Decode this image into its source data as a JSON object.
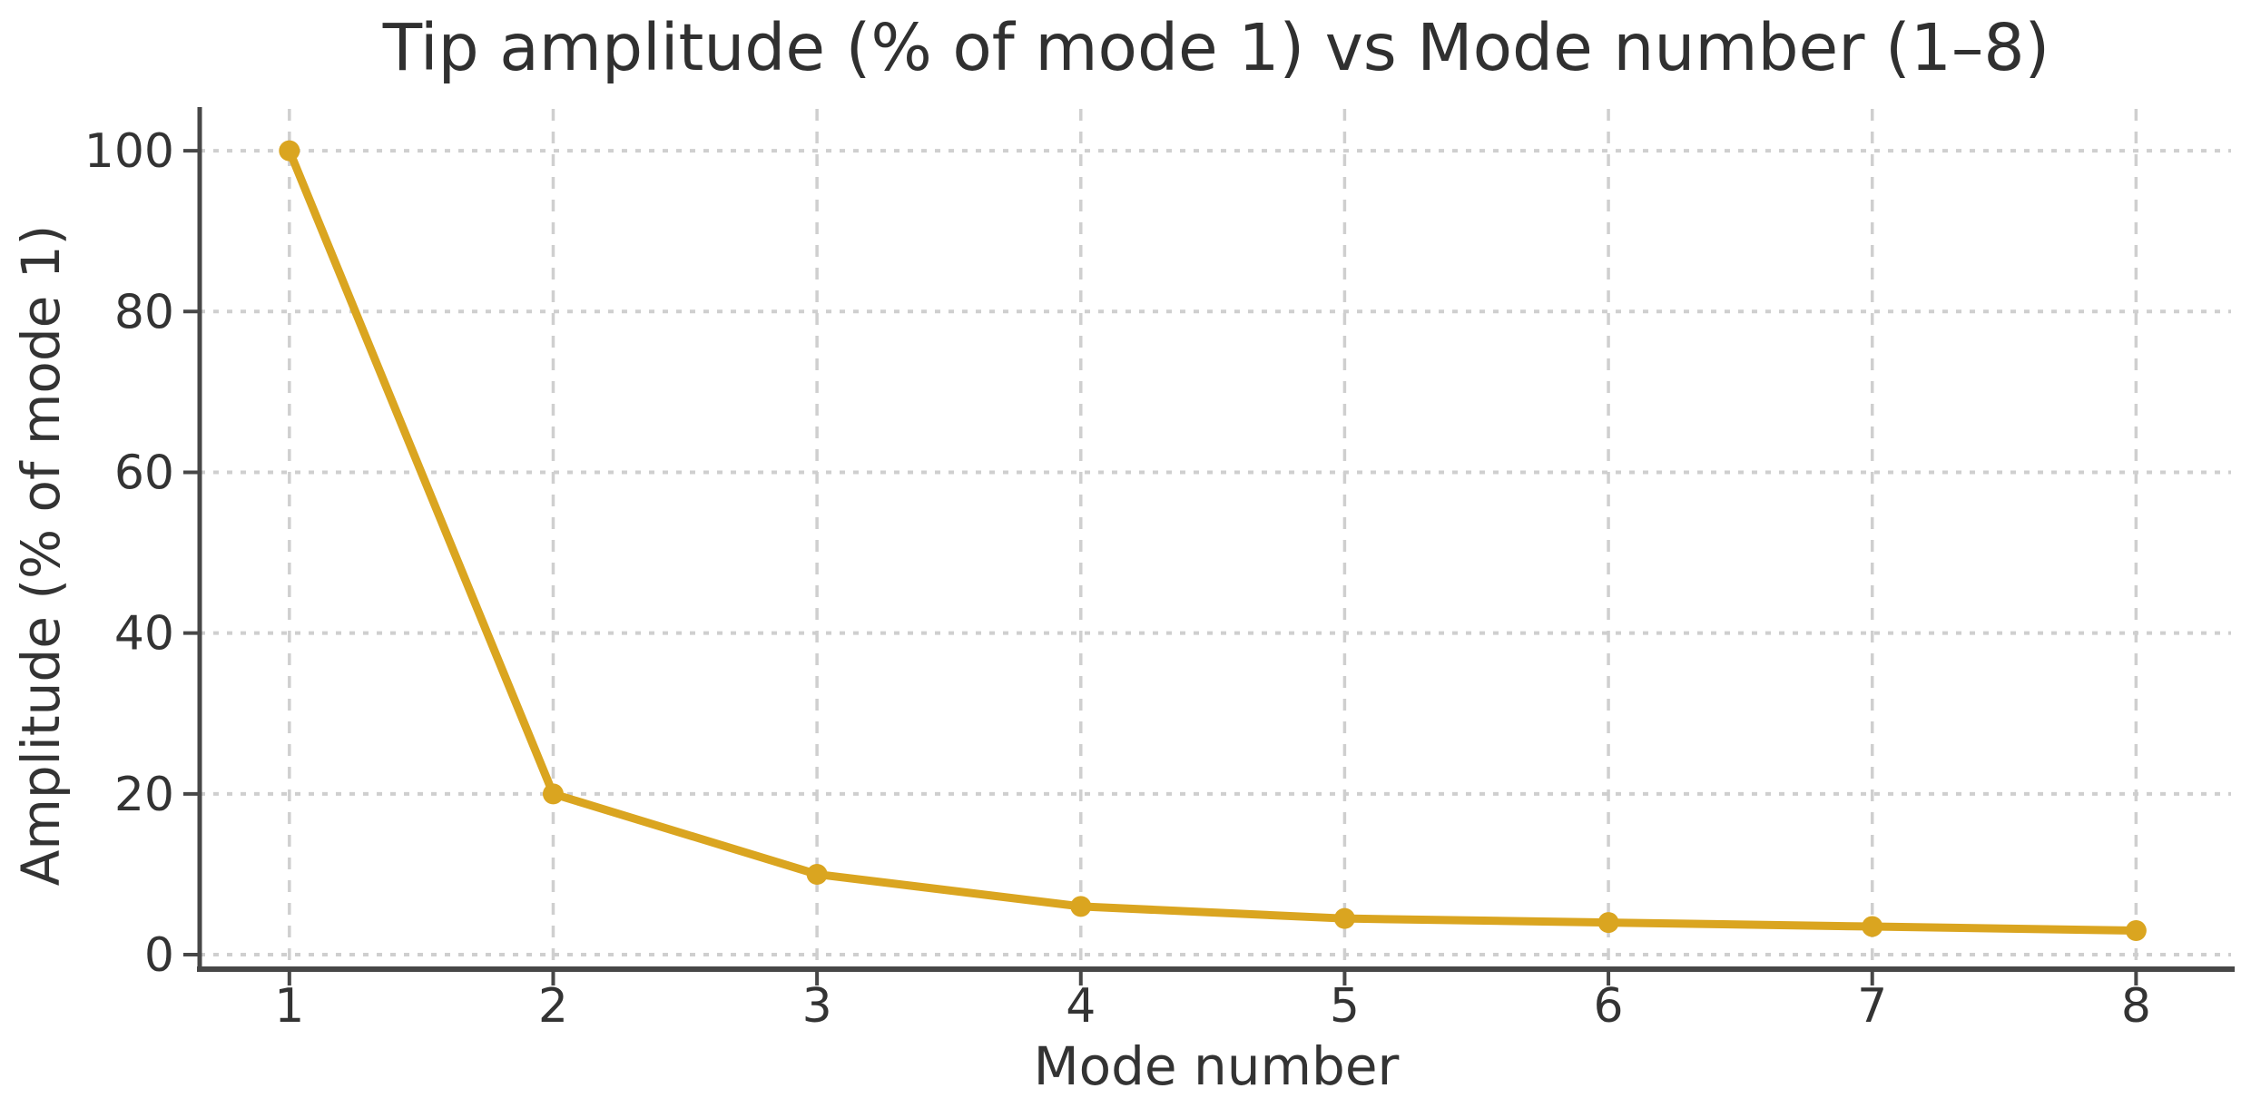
{
  "figure": {
    "background": "#ffffff"
  },
  "chart_data": {
    "type": "line",
    "title": "Tip amplitude (% of mode 1) vs Mode number (1–8)",
    "xlabel": "Mode number",
    "ylabel": "Amplitude (% of mode 1)",
    "x": [
      1,
      2,
      3,
      4,
      5,
      6,
      7,
      8
    ],
    "series": [
      {
        "name": "Tip amplitude (% of mode 1)",
        "values": [
          100,
          20,
          10,
          6,
          4.5,
          4,
          3.5,
          3
        ]
      }
    ],
    "x_tick_labels": [
      "1",
      "2",
      "3",
      "4",
      "5",
      "6",
      "7",
      "8"
    ],
    "y_ticks": [
      0,
      20,
      40,
      60,
      80,
      100
    ],
    "xlim": [
      0.66,
      8.36
    ],
    "ylim": [
      -1.8,
      105.2
    ],
    "grid": true,
    "grid_style": {
      "horizontal": "dotted",
      "vertical": "dashed"
    },
    "legend": false,
    "colors": {
      "line": "#DAA520",
      "marker": "#DAA520",
      "grid": "#cfcfcf",
      "axis": "#474747",
      "tick_text": "#333333",
      "title_text": "#303030"
    }
  }
}
